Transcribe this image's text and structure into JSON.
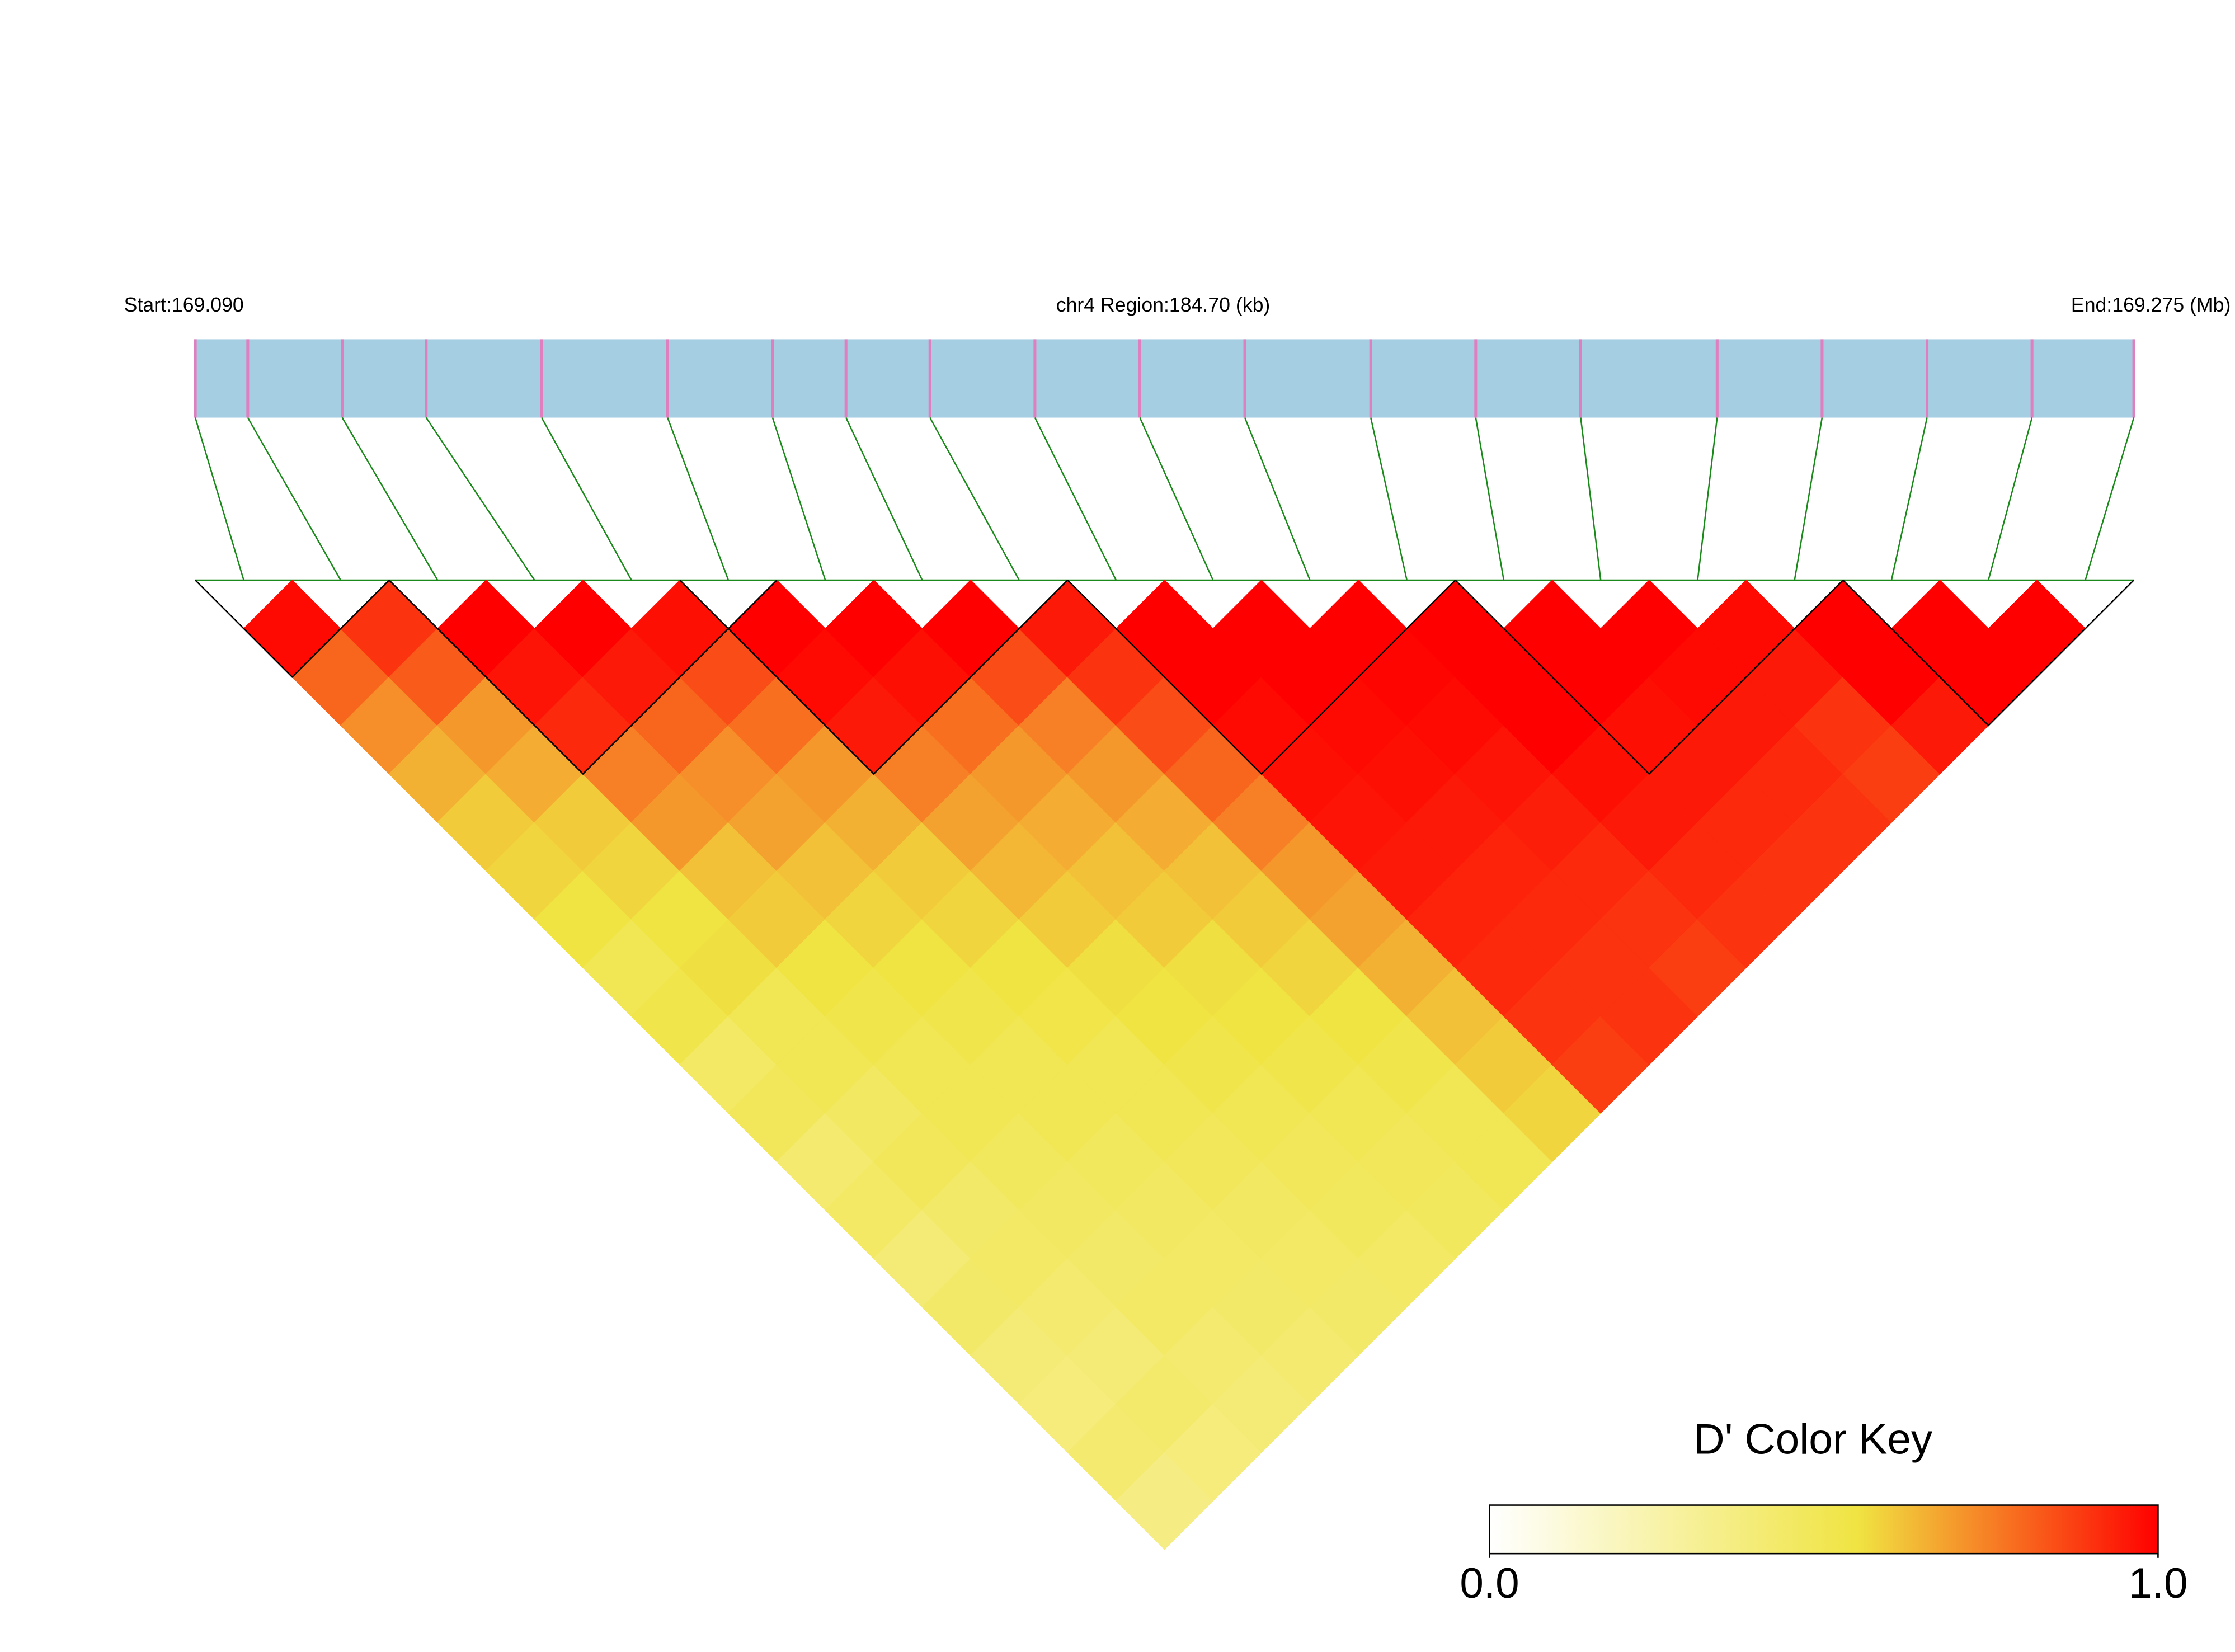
{
  "chart_data": {
    "type": "heatmap",
    "start_label": "Start:169.090",
    "region_label": "chr4 Region:184.70 (kb)",
    "end_label": "End:169.275 (Mb)",
    "xlim": [
      0,
      184.7
    ],
    "snp_positions": [
      0,
      5,
      14,
      22,
      33,
      45,
      55,
      62,
      70,
      80,
      90,
      100,
      112,
      122,
      132,
      145,
      155,
      165,
      175,
      184.7
    ],
    "bar_color": "#a6cee3",
    "snp_color": "#e07fc0",
    "link_color": "#1a8a1a",
    "ld": [
      [
        0.98,
        0.8,
        0.72,
        0.65,
        0.6,
        0.58,
        0.55,
        0.5,
        0.52,
        0.45,
        0.48,
        0.42,
        0.45,
        0.4,
        0.44,
        0.4,
        0.38,
        0.42,
        0.36
      ],
      [
        0.9,
        0.82,
        0.7,
        0.66,
        0.6,
        0.58,
        0.55,
        0.56,
        0.5,
        0.5,
        0.46,
        0.48,
        0.44,
        0.45,
        0.42,
        0.4,
        0.43,
        0.38
      ],
      [
        1,
        0.96,
        0.92,
        0.75,
        0.7,
        0.62,
        0.6,
        0.55,
        0.52,
        0.5,
        0.5,
        0.47,
        0.46,
        0.44,
        0.45,
        0.42,
        0.4
      ],
      [
        1,
        0.95,
        0.8,
        0.72,
        0.68,
        0.62,
        0.58,
        0.55,
        0.52,
        0.5,
        0.5,
        0.47,
        0.46,
        0.45,
        0.44,
        0.42
      ],
      [
        0.97,
        0.85,
        0.78,
        0.7,
        0.65,
        0.6,
        0.58,
        0.55,
        0.53,
        0.5,
        0.5,
        0.48,
        0.46,
        0.45,
        0.44
      ],
      [
        1,
        0.98,
        0.95,
        0.75,
        0.68,
        0.64,
        0.6,
        0.56,
        0.55,
        0.52,
        0.5,
        0.48,
        0.47,
        0.45
      ],
      [
        1,
        0.97,
        0.78,
        0.7,
        0.66,
        0.62,
        0.6,
        0.56,
        0.55,
        0.52,
        0.5,
        0.48,
        0.47
      ],
      [
        1,
        0.85,
        0.75,
        0.7,
        0.66,
        0.62,
        0.6,
        0.58,
        0.55,
        0.52,
        0.5,
        0.5
      ],
      [
        0.95,
        0.9,
        0.85,
        0.8,
        0.75,
        0.7,
        0.68,
        0.65,
        0.62,
        0.6,
        0.58
      ],
      [
        1,
        1,
        0.98,
        0.97,
        0.96,
        0.95,
        0.93,
        0.92,
        0.9,
        0.88
      ],
      [
        1,
        1,
        0.98,
        0.97,
        0.95,
        0.93,
        0.92,
        0.9,
        0.9
      ],
      [
        1,
        0.99,
        0.98,
        0.96,
        0.94,
        0.92,
        0.9,
        0.88
      ],
      [
        1,
        1,
        1,
        0.97,
        0.95,
        0.92,
        0.9
      ],
      [
        1,
        1,
        0.97,
        0.95,
        0.92,
        0.9
      ],
      [
        1,
        0.98,
        0.95,
        0.92,
        0.9
      ],
      [
        0.98,
        0.95,
        0.9,
        0.88
      ],
      [
        1,
        1,
        0.95
      ],
      [
        1,
        1
      ],
      [
        1
      ]
    ],
    "blocks": [
      [
        0,
        1
      ],
      [
        2,
        5
      ],
      [
        5,
        8
      ],
      [
        9,
        12
      ],
      [
        13,
        16
      ],
      [
        17,
        19
      ]
    ],
    "color_key": {
      "title": "D' Color Key",
      "ticks": [
        {
          "value": 0,
          "label": "0.0"
        },
        {
          "value": 1,
          "label": "1.0"
        }
      ],
      "colors": [
        "#ffffff",
        "#f0e442",
        "#ff0000"
      ],
      "stops": [
        0,
        0.55,
        1
      ]
    }
  }
}
